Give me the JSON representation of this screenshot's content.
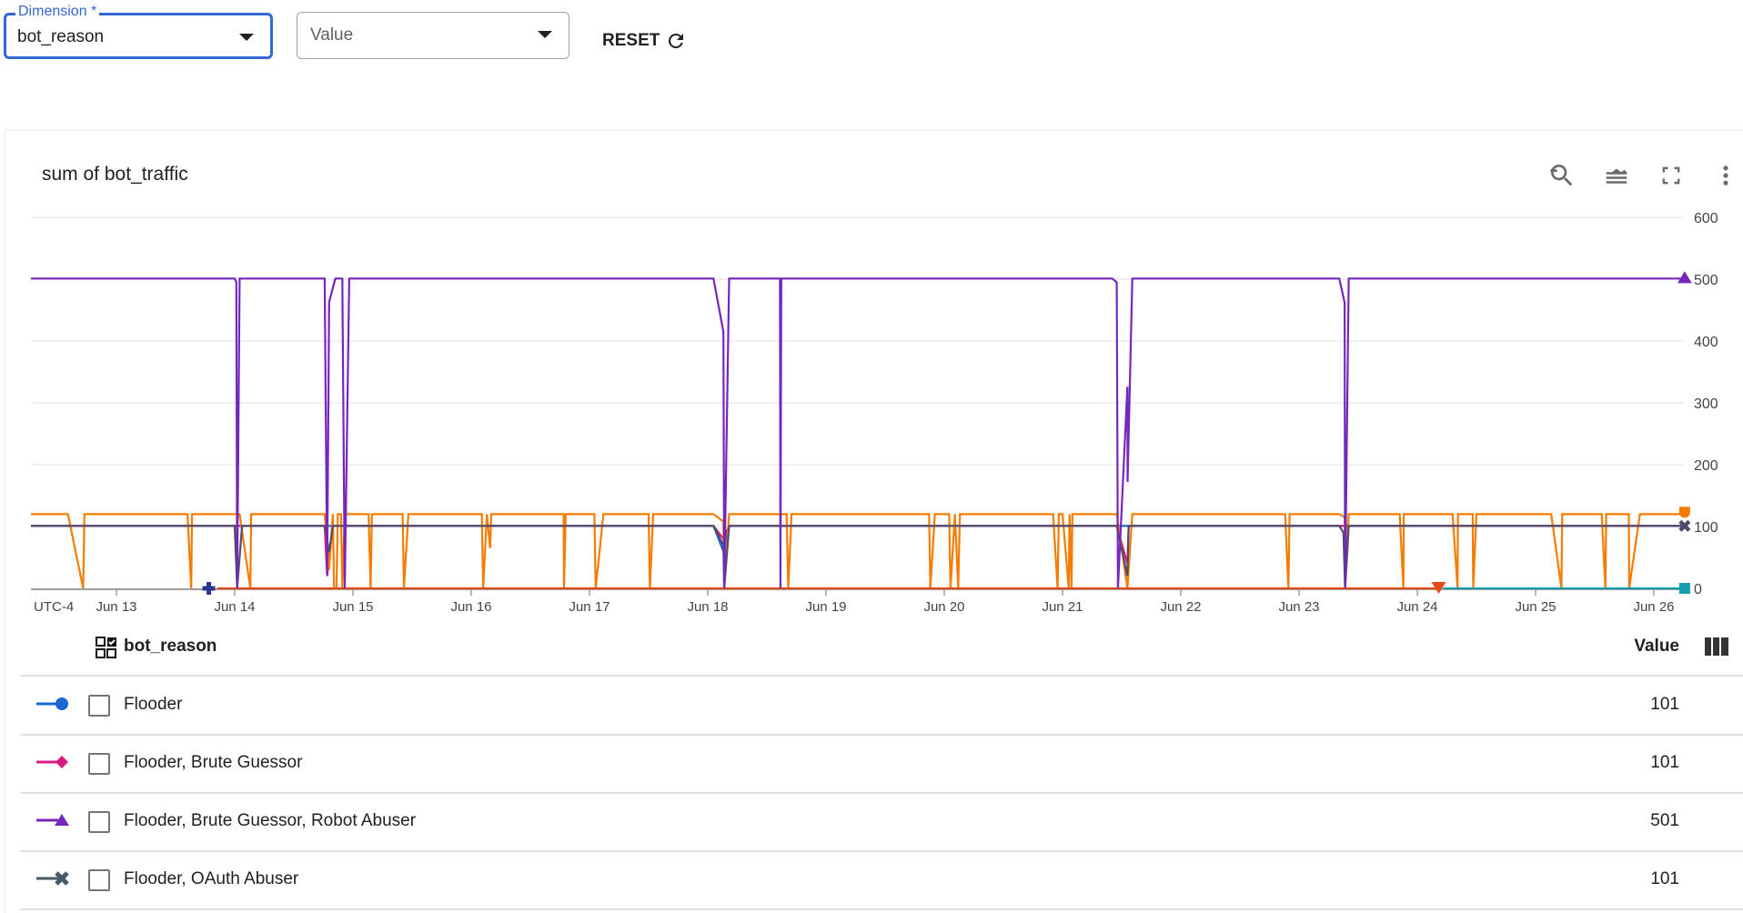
{
  "filters": {
    "dimension": {
      "label": "Dimension *",
      "value": "bot_reason"
    },
    "value": {
      "placeholder": "Value"
    },
    "reset_label": "RESET"
  },
  "card": {
    "title": "sum of bot_traffic",
    "toolbar_icons": [
      "zoom-reset-icon",
      "series-style-icon",
      "fullscreen-icon",
      "more-vert-icon"
    ]
  },
  "chart_data": {
    "type": "line",
    "title": "sum of bot_traffic",
    "timezone_label": "UTC-4",
    "x_ticks": [
      "Jun 13",
      "Jun 14",
      "Jun 15",
      "Jun 16",
      "Jun 17",
      "Jun 18",
      "Jun 19",
      "Jun 20",
      "Jun 21",
      "Jun 22",
      "Jun 23",
      "Jun 24",
      "Jun 25",
      "Jun 26"
    ],
    "xlim": [
      "Jun 12 06:40",
      "Jun 26 06:15"
    ],
    "y_ticks": [
      0,
      100,
      200,
      300,
      400,
      500,
      600
    ],
    "ylim": [
      0,
      600
    ],
    "grid": true,
    "y_axis_side": "right",
    "series": [
      {
        "name": "Flooder",
        "color": "#1967d2",
        "marker": "circle",
        "show_end_marker": false,
        "points": [
          [
            "Jun 12 06:40",
            101
          ],
          [
            "Jun 18 01:10",
            101
          ],
          [
            "Jun 18 03:10",
            60
          ],
          [
            "Jun 18 04:20",
            101
          ],
          [
            "Jun 26 06:15",
            101
          ]
        ]
      },
      {
        "name": "Flooder, Brute Guessor",
        "color": "#d81b7f",
        "marker": "diamond",
        "show_end_marker": false,
        "points": [
          [
            "Jun 12 06:40",
            101
          ],
          [
            "Jun 14 18:15",
            101
          ],
          [
            "Jun 14 18:45",
            20
          ],
          [
            "Jun 14 19:55",
            101
          ],
          [
            "Jun 18 01:10",
            101
          ],
          [
            "Jun 18 03:10",
            80
          ],
          [
            "Jun 18 04:20",
            101
          ],
          [
            "Jun 21 11:00",
            101
          ],
          [
            "Jun 21 13:10",
            40
          ],
          [
            "Jun 21 13:25",
            101
          ],
          [
            "Jun 26 06:15",
            101
          ]
        ]
      },
      {
        "color": "#f57c00",
        "marker": "drop",
        "show_end_marker": true,
        "points": [
          [
            "Jun 12 06:40",
            120
          ],
          [
            "Jun 12 14:10",
            120
          ],
          [
            "Jun 12 17:15",
            0
          ],
          [
            "Jun 12 17:30",
            120
          ],
          [
            "Jun 13 14:25",
            120
          ],
          [
            "Jun 13 15:10",
            0
          ],
          [
            "Jun 13 15:20",
            120
          ],
          [
            "Jun 14 01:00",
            120
          ],
          [
            "Jun 14 03:10",
            0
          ],
          [
            "Jun 14 03:20",
            120
          ],
          [
            "Jun 14 18:15",
            120
          ],
          [
            "Jun 14 19:10",
            30
          ],
          [
            "Jun 14 19:55",
            120
          ],
          [
            "Jun 14 20:10",
            0
          ],
          [
            "Jun 14 20:40",
            0
          ],
          [
            "Jun 14 20:55",
            120
          ],
          [
            "Jun 14 21:35",
            120
          ],
          [
            "Jun 14 21:50",
            0
          ],
          [
            "Jun 14 22:20",
            120
          ],
          [
            "Jun 15 03:10",
            120
          ],
          [
            "Jun 15 03:35",
            0
          ],
          [
            "Jun 15 03:50",
            120
          ],
          [
            "Jun 15 10:05",
            120
          ],
          [
            "Jun 15 10:20",
            0
          ],
          [
            "Jun 15 11:15",
            120
          ],
          [
            "Jun 16 02:10",
            120
          ],
          [
            "Jun 16 02:25",
            0
          ],
          [
            "Jun 16 03:10",
            120
          ],
          [
            "Jun 16 03:50",
            65
          ],
          [
            "Jun 16 04:05",
            120
          ],
          [
            "Jun 16 18:45",
            120
          ],
          [
            "Jun 16 18:50",
            0
          ],
          [
            "Jun 16 19:10",
            120
          ],
          [
            "Jun 17 01:00",
            120
          ],
          [
            "Jun 17 01:15",
            0
          ],
          [
            "Jun 17 02:50",
            120
          ],
          [
            "Jun 17 12:00",
            120
          ],
          [
            "Jun 17 12:15",
            0
          ],
          [
            "Jun 17 12:55",
            120
          ],
          [
            "Jun 18 01:10",
            120
          ],
          [
            "Jun 18 03:10",
            108
          ],
          [
            "Jun 18 03:20",
            0
          ],
          [
            "Jun 18 04:20",
            120
          ],
          [
            "Jun 18 16:00",
            120
          ],
          [
            "Jun 18 16:20",
            0
          ],
          [
            "Jun 18 17:00",
            120
          ],
          [
            "Jun 19 20:55",
            120
          ],
          [
            "Jun 19 21:10",
            0
          ],
          [
            "Jun 19 22:05",
            120
          ],
          [
            "Jun 20 01:00",
            120
          ],
          [
            "Jun 20 01:15",
            0
          ],
          [
            "Jun 20 02:10",
            120
          ],
          [
            "Jun 20 02:50",
            0
          ],
          [
            "Jun 20 03:10",
            120
          ],
          [
            "Jun 20 22:05",
            120
          ],
          [
            "Jun 20 23:00",
            0
          ],
          [
            "Jun 20 23:15",
            120
          ],
          [
            "Jun 21 00:00",
            120
          ],
          [
            "Jun 21 01:15",
            0
          ],
          [
            "Jun 21 01:25",
            120
          ],
          [
            "Jun 21 01:50",
            0
          ],
          [
            "Jun 21 02:00",
            120
          ],
          [
            "Jun 21 11:00",
            120
          ],
          [
            "Jun 21 13:10",
            0
          ],
          [
            "Jun 21 14:10",
            120
          ],
          [
            "Jun 22 21:10",
            120
          ],
          [
            "Jun 22 21:50",
            0
          ],
          [
            "Jun 22 22:05",
            120
          ],
          [
            "Jun 23 08:10",
            120
          ],
          [
            "Jun 23 09:15",
            115
          ],
          [
            "Jun 23 09:20",
            0
          ],
          [
            "Jun 23 10:05",
            120
          ],
          [
            "Jun 23 20:25",
            120
          ],
          [
            "Jun 23 21:10",
            0
          ],
          [
            "Jun 23 21:15",
            120
          ],
          [
            "Jun 24 07:10",
            120
          ],
          [
            "Jun 24 08:10",
            0
          ],
          [
            "Jun 24 08:15",
            120
          ],
          [
            "Jun 24 11:15",
            120
          ],
          [
            "Jun 24 11:20",
            0
          ],
          [
            "Jun 24 12:00",
            120
          ],
          [
            "Jun 25 03:10",
            120
          ],
          [
            "Jun 25 05:15",
            0
          ],
          [
            "Jun 25 05:25",
            120
          ],
          [
            "Jun 25 13:25",
            120
          ],
          [
            "Jun 25 14:10",
            0
          ],
          [
            "Jun 25 14:20",
            120
          ],
          [
            "Jun 25 18:55",
            120
          ],
          [
            "Jun 25 19:00",
            0
          ],
          [
            "Jun 25 21:10",
            120
          ],
          [
            "Jun 26 06:15",
            120
          ]
        ]
      },
      {
        "name": "Flooder, OAuth Abuser",
        "color": "#4f4b6b",
        "marker": "cross",
        "show_end_marker": true,
        "points": [
          [
            "Jun 12 06:40",
            101
          ],
          [
            "Jun 14 00:00",
            101
          ],
          [
            "Jun 14 00:30",
            0
          ],
          [
            "Jun 14 01:30",
            101
          ],
          [
            "Jun 14 18:15",
            101
          ],
          [
            "Jun 14 19:10",
            59
          ],
          [
            "Jun 14 19:55",
            101
          ],
          [
            "Jun 18 01:10",
            101
          ],
          [
            "Jun 18 03:10",
            70
          ],
          [
            "Jun 18 03:20",
            0
          ],
          [
            "Jun 18 04:20",
            101
          ],
          [
            "Jun 21 11:00",
            101
          ],
          [
            "Jun 21 13:10",
            20
          ],
          [
            "Jun 21 13:25",
            101
          ],
          [
            "Jun 23 08:10",
            101
          ],
          [
            "Jun 23 09:00",
            90
          ],
          [
            "Jun 23 09:20",
            0
          ],
          [
            "Jun 23 10:05",
            101
          ],
          [
            "Jun 26 06:15",
            101
          ]
        ]
      },
      {
        "color": "#e64a19",
        "marker": "triangle-down",
        "show_end_marker": true,
        "points": [
          [
            "Jun 13 20:25",
            0
          ],
          [
            "Jun 24 04:20",
            0
          ]
        ]
      },
      {
        "color": "#129eaf",
        "marker": "square",
        "show_end_marker": true,
        "points": [
          [
            "Jun 24 05:15",
            0
          ],
          [
            "Jun 26 06:15",
            0
          ]
        ]
      },
      {
        "color": "#283593",
        "marker": "plus",
        "show_end_marker": true,
        "points": [
          [
            "Jun 13 18:45",
            0
          ]
        ]
      },
      {
        "name": "Flooder, Brute Guessor, Robot Abuser",
        "color": "#7627bb",
        "marker": "triangle",
        "show_end_marker": true,
        "points": [
          [
            "Jun 12 06:40",
            501
          ],
          [
            "Jun 14 00:00",
            501
          ],
          [
            "Jun 14 00:20",
            495
          ],
          [
            "Jun 14 00:30",
            0
          ],
          [
            "Jun 14 01:00",
            501
          ],
          [
            "Jun 14 18:15",
            501
          ],
          [
            "Jun 14 18:45",
            20
          ],
          [
            "Jun 14 19:10",
            463
          ],
          [
            "Jun 14 20:25",
            501
          ],
          [
            "Jun 14 21:50",
            501
          ],
          [
            "Jun 14 22:20",
            0
          ],
          [
            "Jun 14 23:15",
            501
          ],
          [
            "Jun 18 01:10",
            501
          ],
          [
            "Jun 18 03:10",
            415
          ],
          [
            "Jun 18 03:20",
            0
          ],
          [
            "Jun 18 04:20",
            501
          ],
          [
            "Jun 18 14:40",
            501
          ],
          [
            "Jun 18 14:45",
            0
          ],
          [
            "Jun 18 14:55",
            501
          ],
          [
            "Jun 21 10:05",
            501
          ],
          [
            "Jun 21 11:00",
            495
          ],
          [
            "Jun 21 11:15",
            0
          ],
          [
            "Jun 21 13:10",
            326
          ],
          [
            "Jun 21 13:12",
            172
          ],
          [
            "Jun 21 14:10",
            501
          ],
          [
            "Jun 23 08:10",
            501
          ],
          [
            "Jun 23 09:15",
            462
          ],
          [
            "Jun 23 09:20",
            0
          ],
          [
            "Jun 23 10:05",
            501
          ],
          [
            "Jun 26 06:15",
            501
          ]
        ]
      }
    ]
  },
  "table": {
    "dimension_header": "bot_reason",
    "value_header": "Value",
    "rows": [
      {
        "label": "Flooder",
        "value": "101",
        "color": "#1967d2",
        "marker": "circle",
        "checked": false
      },
      {
        "label": "Flooder, Brute Guessor",
        "value": "101",
        "color": "#d81b7f",
        "marker": "diamond",
        "checked": false
      },
      {
        "label": "Flooder, Brute Guessor, Robot Abuser",
        "value": "501",
        "color": "#7627bb",
        "marker": "triangle",
        "checked": false
      },
      {
        "label": "Flooder, OAuth Abuser",
        "value": "101",
        "color": "#455a64",
        "marker": "cross",
        "checked": false
      }
    ]
  }
}
